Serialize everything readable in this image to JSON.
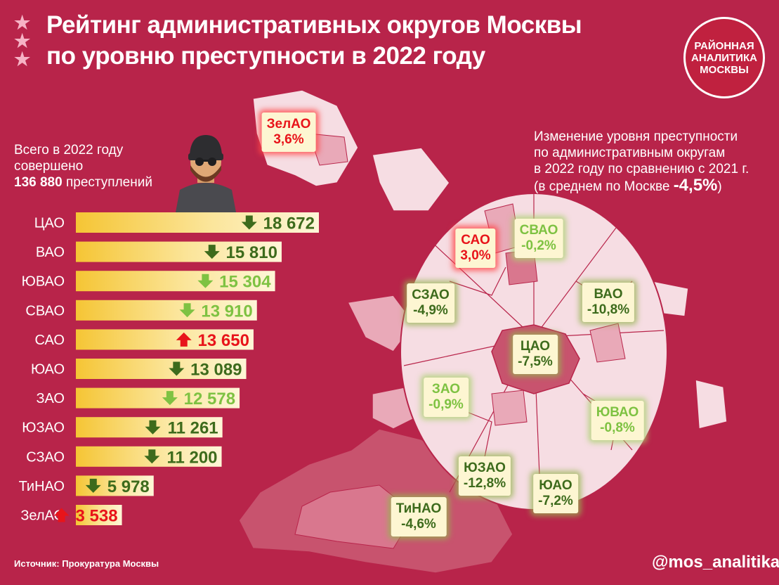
{
  "title": {
    "line1": "Рейтинг административных округов Москвы",
    "line2": "по уровню преступности в 2022 году"
  },
  "logo": {
    "line1": "РАЙОННАЯ",
    "line2": "АНАЛИТИКА",
    "line3": "МОСКВЫ"
  },
  "total": {
    "line1": "Всего в 2022 году",
    "line2": "совершено",
    "number": "136 880",
    "suffix": " преступлений"
  },
  "note": {
    "line1": "Изменение уровня преступности",
    "line2": "по административным округам",
    "line3": "в 2022 году по сравнению с 2021 г.",
    "line4_prefix": "(в среднем по Москве ",
    "avg": "-4,5%",
    "line4_suffix": ")"
  },
  "source": "Источник: Прокуратура Москвы",
  "handle": "@mos_analitika",
  "colors": {
    "background": "#b8244a",
    "bar_start": "#f5c534",
    "bar_end": "#fef6d8",
    "dark_green": "#3d6b1c",
    "light_green": "#7ec242",
    "red": "#e8141a",
    "map_light": "#f6dde3",
    "map_mid": "#e9a9b8",
    "map_dark": "#c8536e"
  },
  "chart_data": {
    "type": "bar",
    "orientation": "horizontal",
    "categories": [
      "ЦАО",
      "ВАО",
      "ЮВАО",
      "СВАО",
      "САО",
      "ЮАО",
      "ЗАО",
      "ЮЗАО",
      "СЗАО",
      "ТиНАО",
      "ЗелАО"
    ],
    "values": [
      18672,
      15810,
      15304,
      13910,
      13650,
      13089,
      12578,
      11261,
      11200,
      5978,
      3538
    ],
    "labels": [
      "18 672",
      "15 810",
      "15 304",
      "13 910",
      "13 650",
      "13 089",
      "12 578",
      "11 261",
      "11 200",
      "5 978",
      "3 538"
    ],
    "trend": [
      "down-dark",
      "down-dark",
      "down-light",
      "down-light",
      "up-red",
      "down-dark",
      "down-light",
      "down-dark",
      "down-dark",
      "down-dark",
      "up-red"
    ]
  },
  "map_labels": [
    {
      "name": "ЗелАО",
      "value": "3,6%",
      "style": "red"
    },
    {
      "name": "САО",
      "value": "3,0%",
      "style": "red"
    },
    {
      "name": "СВАО",
      "value": "-0,2%",
      "style": "light"
    },
    {
      "name": "СЗАО",
      "value": "-4,9%",
      "style": "dark"
    },
    {
      "name": "ВАО",
      "value": "-10,8%",
      "style": "dark"
    },
    {
      "name": "ЦАО",
      "value": "-7,5%",
      "style": "dark"
    },
    {
      "name": "ЗАО",
      "value": "-0,9%",
      "style": "light"
    },
    {
      "name": "ЮВАО",
      "value": "-0,8%",
      "style": "light"
    },
    {
      "name": "ЮЗАО",
      "value": "-12,8%",
      "style": "dark"
    },
    {
      "name": "ЮАО",
      "value": "-7,2%",
      "style": "dark"
    },
    {
      "name": "ТиНАО",
      "value": "-4,6%",
      "style": "dark"
    }
  ]
}
